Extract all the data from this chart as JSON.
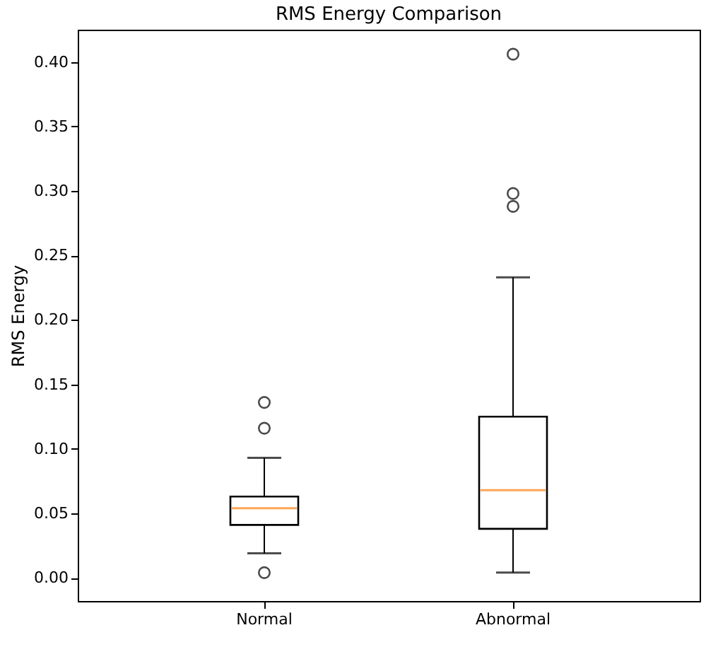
{
  "chart_data": {
    "type": "box",
    "title": "RMS Energy Comparison",
    "ylabel": "RMS Energy",
    "categories": [
      "Normal",
      "Abnormal"
    ],
    "boxes": [
      {
        "low": 0.019,
        "q1": 0.041,
        "median": 0.054,
        "q3": 0.063,
        "high": 0.093,
        "outliers": [
          0.136,
          0.116,
          0.004
        ]
      },
      {
        "low": 0.004,
        "q1": 0.038,
        "median": 0.068,
        "q3": 0.125,
        "high": 0.233,
        "outliers": [
          0.406,
          0.298,
          0.288
        ]
      }
    ],
    "ylim": [
      -0.018,
      0.425
    ],
    "yticks": [
      {
        "value": 0,
        "label": "0.00"
      },
      {
        "value": 0.05,
        "label": "0.05"
      },
      {
        "value": 0.1,
        "label": "0.10"
      },
      {
        "value": 0.15,
        "label": "0.15"
      },
      {
        "value": 0.2,
        "label": "0.20"
      },
      {
        "value": 0.25,
        "label": "0.25"
      },
      {
        "value": 0.3,
        "label": "0.30"
      },
      {
        "value": 0.35,
        "label": "0.35"
      },
      {
        "value": 0.4,
        "label": "0.40"
      }
    ],
    "grid": false
  }
}
